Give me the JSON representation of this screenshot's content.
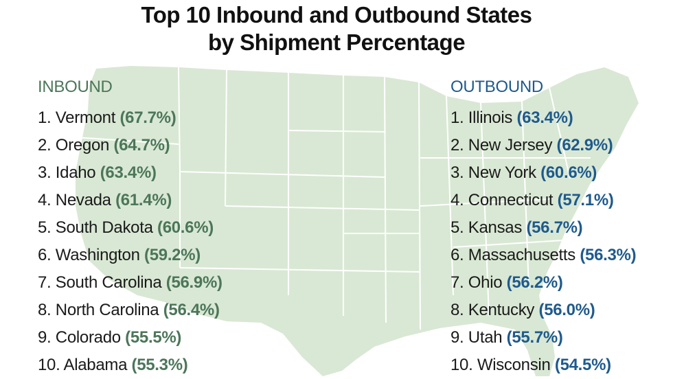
{
  "title": {
    "line1": "Top 10 Inbound and Outbound States",
    "line2": "by Shipment Percentage"
  },
  "colors": {
    "inbound": "#4c7659",
    "outbound": "#1f5a8c",
    "map_fill": "#d9e8d4",
    "map_borders": "#ffffff"
  },
  "inbound": {
    "heading": "INBOUND",
    "items": [
      {
        "rank": "1.",
        "state": "Vermont",
        "pct": "(67.7%)"
      },
      {
        "rank": "2.",
        "state": "Oregon",
        "pct": "(64.7%)"
      },
      {
        "rank": "3.",
        "state": "Idaho",
        "pct": "(63.4%)"
      },
      {
        "rank": "4.",
        "state": "Nevada",
        "pct": "(61.4%)"
      },
      {
        "rank": "5.",
        "state": "South Dakota",
        "pct": "(60.6%)"
      },
      {
        "rank": "6.",
        "state": "Washington",
        "pct": "(59.2%)"
      },
      {
        "rank": "7.",
        "state": "South Carolina",
        "pct": "(56.9%)"
      },
      {
        "rank": "8.",
        "state": "North Carolina",
        "pct": "(56.4%)"
      },
      {
        "rank": "9.",
        "state": "Colorado",
        "pct": "(55.5%)"
      },
      {
        "rank": "10.",
        "state": "Alabama",
        "pct": "(55.3%)"
      }
    ]
  },
  "outbound": {
    "heading": "OUTBOUND",
    "items": [
      {
        "rank": "1.",
        "state": "Illinois",
        "pct": "(63.4%)"
      },
      {
        "rank": "2.",
        "state": "New Jersey",
        "pct": "(62.9%)"
      },
      {
        "rank": "3.",
        "state": "New York",
        "pct": "(60.6%)"
      },
      {
        "rank": "4.",
        "state": "Connecticut",
        "pct": "(57.1%)"
      },
      {
        "rank": "5.",
        "state": "Kansas",
        "pct": "(56.7%)"
      },
      {
        "rank": "6.",
        "state": "Massachusetts",
        "pct": "(56.3%)"
      },
      {
        "rank": "7.",
        "state": "Ohio",
        "pct": "(56.2%)"
      },
      {
        "rank": "8.",
        "state": "Kentucky",
        "pct": "(56.0%)"
      },
      {
        "rank": "9.",
        "state": "Utah",
        "pct": "(55.7%)"
      },
      {
        "rank": "10.",
        "state": "Wisconsin",
        "pct": "(54.5%)"
      }
    ]
  }
}
